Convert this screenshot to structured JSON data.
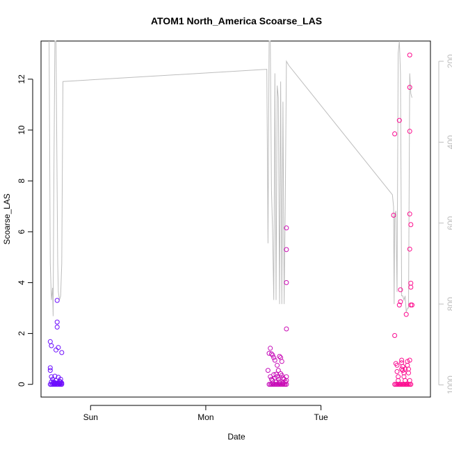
{
  "chart_data": {
    "type": "scatter",
    "title": "ATOM1 North_America Scoarse_LAS",
    "xlabel": "Date",
    "ylabel": "Scoarse_LAS",
    "x_ticks": [
      "Sun",
      "Mon",
      "Tue"
    ],
    "x_tick_positions_days": [
      1.0,
      2.0,
      3.0
    ],
    "xlim_days": [
      0.57,
      3.95
    ],
    "ylim": [
      -0.5,
      13.5
    ],
    "y_ticks": [
      0,
      2,
      4,
      6,
      8,
      10,
      12
    ],
    "y2_ticks": [
      200,
      400,
      600,
      800,
      1000
    ],
    "y2lim": [
      1030,
      150
    ],
    "point_color_start": "#6a0dff",
    "point_color_end": "#ff0a8c",
    "pressure_line_color": "#bdbdbd",
    "grid": false,
    "series": [
      {
        "segment": 1,
        "points": [
          [
            0.65,
            1.68
          ],
          [
            0.66,
            1.52
          ],
          [
            0.65,
            0.65
          ],
          [
            0.65,
            0.55
          ],
          [
            0.66,
            0.3
          ],
          [
            0.67,
            0.2
          ],
          [
            0.66,
            0.1
          ],
          [
            0.68,
            0.05
          ],
          [
            0.69,
            0.32
          ],
          [
            0.7,
            0.15
          ],
          [
            0.7,
            0.05
          ],
          [
            0.71,
            3.3
          ],
          [
            0.71,
            2.45
          ],
          [
            0.71,
            2.25
          ],
          [
            0.7,
            1.35
          ],
          [
            0.72,
            1.45
          ],
          [
            0.72,
            0.28
          ],
          [
            0.73,
            0.12
          ],
          [
            0.73,
            0.05
          ],
          [
            0.74,
            0.2
          ],
          [
            0.74,
            0.1
          ],
          [
            0.75,
            1.25
          ],
          [
            0.75,
            0.05
          ],
          [
            0.68,
            0.0
          ],
          [
            0.66,
            0.0
          ],
          [
            0.67,
            0.0
          ],
          [
            0.69,
            0.0
          ],
          [
            0.7,
            0.0
          ],
          [
            0.71,
            0.0
          ],
          [
            0.72,
            0.0
          ],
          [
            0.73,
            0.0
          ],
          [
            0.74,
            0.0
          ],
          [
            0.75,
            0.0
          ],
          [
            0.65,
            0.0
          ],
          [
            0.68,
            0.1
          ],
          [
            0.72,
            0.05
          ],
          [
            0.69,
            0.05
          ],
          [
            0.74,
            0.05
          ]
        ]
      },
      {
        "segment": 2,
        "points": [
          [
            2.54,
            0.55
          ],
          [
            2.55,
            1.22
          ],
          [
            2.56,
            1.42
          ],
          [
            2.57,
            1.2
          ],
          [
            2.58,
            1.15
          ],
          [
            2.59,
            1.05
          ],
          [
            2.6,
            0.95
          ],
          [
            2.56,
            0.3
          ],
          [
            2.57,
            0.2
          ],
          [
            2.58,
            0.15
          ],
          [
            2.59,
            0.38
          ],
          [
            2.6,
            0.25
          ],
          [
            2.61,
            0.4
          ],
          [
            2.62,
            0.75
          ],
          [
            2.63,
            0.55
          ],
          [
            2.64,
            1.1
          ],
          [
            2.65,
            1.05
          ],
          [
            2.66,
            0.9
          ],
          [
            2.62,
            0.3
          ],
          [
            2.63,
            0.2
          ],
          [
            2.64,
            0.1
          ],
          [
            2.65,
            0.42
          ],
          [
            2.66,
            0.35
          ],
          [
            2.67,
            0.25
          ],
          [
            2.68,
            0.2
          ],
          [
            2.69,
            0.1
          ],
          [
            2.7,
            6.15
          ],
          [
            2.7,
            5.3
          ],
          [
            2.7,
            4.0
          ],
          [
            2.7,
            2.18
          ],
          [
            2.7,
            0.3
          ],
          [
            2.7,
            0.15
          ],
          [
            2.55,
            0.0
          ],
          [
            2.56,
            0.0
          ],
          [
            2.57,
            0.0
          ],
          [
            2.58,
            0.0
          ],
          [
            2.59,
            0.0
          ],
          [
            2.6,
            0.0
          ],
          [
            2.61,
            0.0
          ],
          [
            2.62,
            0.0
          ],
          [
            2.63,
            0.0
          ],
          [
            2.64,
            0.0
          ],
          [
            2.65,
            0.0
          ],
          [
            2.66,
            0.0
          ],
          [
            2.67,
            0.0
          ],
          [
            2.68,
            0.0
          ],
          [
            2.69,
            0.0
          ],
          [
            2.7,
            0.0
          ],
          [
            2.58,
            0.05
          ],
          [
            2.61,
            0.1
          ],
          [
            2.64,
            0.05
          ],
          [
            2.67,
            0.05
          ]
        ]
      },
      {
        "segment": 3,
        "points": [
          [
            3.63,
            6.65
          ],
          [
            3.64,
            9.85
          ],
          [
            3.64,
            1.92
          ],
          [
            3.65,
            0.82
          ],
          [
            3.66,
            0.75
          ],
          [
            3.66,
            0.5
          ],
          [
            3.67,
            0.3
          ],
          [
            3.67,
            0.15
          ],
          [
            3.68,
            10.38
          ],
          [
            3.68,
            3.12
          ],
          [
            3.69,
            3.25
          ],
          [
            3.69,
            3.72
          ],
          [
            3.7,
            0.95
          ],
          [
            3.7,
            0.85
          ],
          [
            3.71,
            0.7
          ],
          [
            3.71,
            0.55
          ],
          [
            3.72,
            0.45
          ],
          [
            3.72,
            0.3
          ],
          [
            3.73,
            0.15
          ],
          [
            3.74,
            2.75
          ],
          [
            3.75,
            0.9
          ],
          [
            3.75,
            0.75
          ],
          [
            3.76,
            0.6
          ],
          [
            3.76,
            0.45
          ],
          [
            3.77,
            12.95
          ],
          [
            3.77,
            11.68
          ],
          [
            3.77,
            9.95
          ],
          [
            3.77,
            6.7
          ],
          [
            3.77,
            5.32
          ],
          [
            3.78,
            6.28
          ],
          [
            3.78,
            3.98
          ],
          [
            3.78,
            3.82
          ],
          [
            3.78,
            3.12
          ],
          [
            3.79,
            3.12
          ],
          [
            3.77,
            0.95
          ],
          [
            3.77,
            0.15
          ],
          [
            3.64,
            0.0
          ],
          [
            3.65,
            0.0
          ],
          [
            3.66,
            0.0
          ],
          [
            3.67,
            0.0
          ],
          [
            3.68,
            0.0
          ],
          [
            3.69,
            0.0
          ],
          [
            3.7,
            0.0
          ],
          [
            3.71,
            0.0
          ],
          [
            3.72,
            0.0
          ],
          [
            3.73,
            0.0
          ],
          [
            3.74,
            0.0
          ],
          [
            3.75,
            0.0
          ],
          [
            3.76,
            0.0
          ],
          [
            3.77,
            0.0
          ],
          [
            3.78,
            0.0
          ],
          [
            3.7,
            0.6
          ],
          [
            3.73,
            0.6
          ]
        ]
      }
    ],
    "pressure_line_y2": [
      [
        0.64,
        150
      ],
      [
        0.65,
        700
      ],
      [
        0.66,
        790
      ],
      [
        0.67,
        760
      ],
      [
        0.675,
        830
      ],
      [
        0.68,
        560
      ],
      [
        0.69,
        150
      ],
      [
        0.7,
        150
      ],
      [
        0.715,
        700
      ],
      [
        0.72,
        770
      ],
      [
        0.73,
        790
      ],
      [
        0.74,
        780
      ],
      [
        0.75,
        700
      ],
      [
        0.76,
        250
      ],
      [
        2.53,
        220
      ],
      [
        2.54,
        650
      ],
      [
        2.55,
        150
      ],
      [
        2.56,
        150
      ],
      [
        2.57,
        520
      ],
      [
        2.58,
        620
      ],
      [
        2.59,
        790
      ],
      [
        2.6,
        230
      ],
      [
        2.61,
        790
      ],
      [
        2.62,
        260
      ],
      [
        2.63,
        290
      ],
      [
        2.64,
        800
      ],
      [
        2.65,
        250
      ],
      [
        2.66,
        800
      ],
      [
        2.67,
        300
      ],
      [
        2.68,
        800
      ],
      [
        2.69,
        560
      ],
      [
        2.7,
        200
      ],
      [
        2.72,
        210
      ],
      [
        3.62,
        530
      ],
      [
        3.63,
        560
      ],
      [
        3.635,
        800
      ],
      [
        3.64,
        580
      ],
      [
        3.65,
        570
      ],
      [
        3.66,
        770
      ],
      [
        3.67,
        180
      ],
      [
        3.68,
        150
      ],
      [
        3.69,
        230
      ],
      [
        3.7,
        780
      ],
      [
        3.71,
        780
      ],
      [
        3.72,
        790
      ],
      [
        3.73,
        780
      ],
      [
        3.74,
        820
      ],
      [
        3.75,
        810
      ],
      [
        3.76,
        810
      ],
      [
        3.77,
        230
      ],
      [
        3.78,
        280
      ],
      [
        3.79,
        290
      ]
    ]
  }
}
